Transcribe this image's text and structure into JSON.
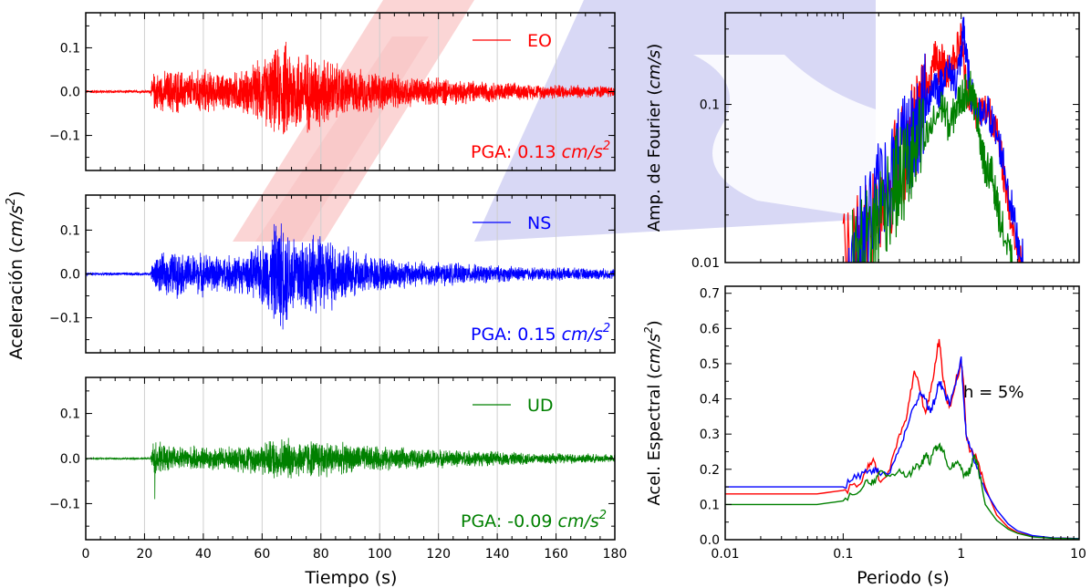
{
  "figure": {
    "left_ylabel": "Aceleración",
    "left_ylabel_unit_base": "cm/s",
    "left_ylabel_unit_exp": "2",
    "left_xlabel": "Tiempo (s)",
    "right_xlabel": "Periodo (s)"
  },
  "colors": {
    "EO": "#ff0000",
    "NS": "#0000ff",
    "UD": "#008000",
    "watermark_red": "#f7b8b8",
    "watermark_blue": "#b8b8ee"
  },
  "chart_data": [
    {
      "type": "line",
      "id": "EO",
      "legend": "EO",
      "pga_prefix": "PGA: ",
      "pga_value": "0.13",
      "pga_unit": "cm/s",
      "pga_unit_exp": "2",
      "xlim": [
        0,
        180
      ],
      "ylim": [
        -0.18,
        0.18
      ],
      "xticks": [
        "0",
        "20",
        "40",
        "60",
        "80",
        "100",
        "120",
        "140",
        "160",
        "180"
      ],
      "yticks": [
        "−0.1",
        "0.0",
        "0.1"
      ],
      "ytick_values": [
        -0.1,
        0.0,
        0.1
      ],
      "pga": 0.13,
      "envelope": [
        [
          0,
          0.004
        ],
        [
          22,
          0.004
        ],
        [
          23,
          0.05
        ],
        [
          26,
          0.05
        ],
        [
          30,
          0.06
        ],
        [
          35,
          0.05
        ],
        [
          40,
          0.06
        ],
        [
          45,
          0.045
        ],
        [
          50,
          0.05
        ],
        [
          55,
          0.06
        ],
        [
          60,
          0.085
        ],
        [
          65,
          0.11
        ],
        [
          68,
          0.13
        ],
        [
          72,
          0.11
        ],
        [
          78,
          0.1
        ],
        [
          82,
          0.085
        ],
        [
          90,
          0.06
        ],
        [
          100,
          0.05
        ],
        [
          110,
          0.04
        ],
        [
          130,
          0.03
        ],
        [
          150,
          0.02
        ],
        [
          180,
          0.015
        ]
      ]
    },
    {
      "type": "line",
      "id": "NS",
      "legend": "NS",
      "pga_prefix": "PGA: ",
      "pga_value": "0.15",
      "pga_unit": "cm/s",
      "pga_unit_exp": "2",
      "xlim": [
        0,
        180
      ],
      "ylim": [
        -0.18,
        0.18
      ],
      "xticks": [
        "0",
        "20",
        "40",
        "60",
        "80",
        "100",
        "120",
        "140",
        "160",
        "180"
      ],
      "yticks": [
        "−0.1",
        "0.0",
        "0.1"
      ],
      "ytick_values": [
        -0.1,
        0.0,
        0.1
      ],
      "pga": 0.15,
      "envelope": [
        [
          0,
          0.004
        ],
        [
          22,
          0.004
        ],
        [
          23,
          0.045
        ],
        [
          26,
          0.05
        ],
        [
          30,
          0.06
        ],
        [
          35,
          0.05
        ],
        [
          40,
          0.055
        ],
        [
          45,
          0.045
        ],
        [
          50,
          0.05
        ],
        [
          55,
          0.05
        ],
        [
          60,
          0.08
        ],
        [
          63,
          0.1
        ],
        [
          65,
          0.15
        ],
        [
          70,
          0.12
        ],
        [
          75,
          0.1
        ],
        [
          80,
          0.1
        ],
        [
          84,
          0.09
        ],
        [
          90,
          0.06
        ],
        [
          100,
          0.045
        ],
        [
          110,
          0.035
        ],
        [
          130,
          0.025
        ],
        [
          150,
          0.018
        ],
        [
          180,
          0.013
        ]
      ]
    },
    {
      "type": "line",
      "id": "UD",
      "legend": "UD",
      "pga_prefix": "PGA: ",
      "pga_value": "-0.09",
      "pga_unit": "cm/s",
      "pga_unit_exp": "2",
      "xlim": [
        0,
        180
      ],
      "ylim": [
        -0.18,
        0.18
      ],
      "xticks": [
        "0",
        "20",
        "40",
        "60",
        "80",
        "100",
        "120",
        "140",
        "160",
        "180"
      ],
      "yticks": [
        "−0.1",
        "0.0",
        "0.1"
      ],
      "ytick_values": [
        -0.1,
        0.0,
        0.1
      ],
      "pga": -0.09,
      "spike": {
        "t": 23.5,
        "value": -0.09
      },
      "envelope": [
        [
          0,
          0.002
        ],
        [
          22,
          0.002
        ],
        [
          23,
          0.05
        ],
        [
          26,
          0.035
        ],
        [
          30,
          0.03
        ],
        [
          40,
          0.03
        ],
        [
          50,
          0.03
        ],
        [
          60,
          0.04
        ],
        [
          65,
          0.055
        ],
        [
          70,
          0.05
        ],
        [
          75,
          0.045
        ],
        [
          80,
          0.05
        ],
        [
          85,
          0.04
        ],
        [
          90,
          0.035
        ],
        [
          100,
          0.03
        ],
        [
          110,
          0.025
        ],
        [
          130,
          0.02
        ],
        [
          150,
          0.015
        ],
        [
          180,
          0.01
        ]
      ]
    },
    {
      "type": "line",
      "id": "fourier",
      "ylabel": "Amp. de Fourier",
      "ylabel_unit": "cm/s",
      "xscale": "log",
      "yscale": "log",
      "xlim": [
        0.01,
        10
      ],
      "ylim": [
        0.01,
        0.38
      ],
      "yticks": [
        "0.01",
        "0.1"
      ],
      "ytick_values": [
        0.01,
        0.1
      ],
      "series": [
        {
          "component": "EO",
          "points": [
            [
              0.1,
              0.01
            ],
            [
              0.13,
              0.013
            ],
            [
              0.16,
              0.018
            ],
            [
              0.2,
              0.025
            ],
            [
              0.25,
              0.032
            ],
            [
              0.3,
              0.045
            ],
            [
              0.35,
              0.055
            ],
            [
              0.4,
              0.07
            ],
            [
              0.45,
              0.09
            ],
            [
              0.5,
              0.12
            ],
            [
              0.55,
              0.15
            ],
            [
              0.6,
              0.2
            ],
            [
              0.65,
              0.17
            ],
            [
              0.7,
              0.19
            ],
            [
              0.75,
              0.15
            ],
            [
              0.8,
              0.18
            ],
            [
              0.9,
              0.21
            ],
            [
              1.0,
              0.26
            ],
            [
              1.1,
              0.13
            ],
            [
              1.2,
              0.11
            ],
            [
              1.35,
              0.09
            ],
            [
              1.5,
              0.09
            ],
            [
              1.7,
              0.095
            ],
            [
              1.9,
              0.08
            ],
            [
              2.2,
              0.045
            ],
            [
              2.6,
              0.02
            ],
            [
              3.0,
              0.012
            ],
            [
              3.3,
              0.01
            ]
          ]
        },
        {
          "component": "NS",
          "points": [
            [
              0.11,
              0.01
            ],
            [
              0.14,
              0.014
            ],
            [
              0.17,
              0.02
            ],
            [
              0.2,
              0.028
            ],
            [
              0.25,
              0.035
            ],
            [
              0.3,
              0.045
            ],
            [
              0.35,
              0.055
            ],
            [
              0.4,
              0.065
            ],
            [
              0.45,
              0.08
            ],
            [
              0.5,
              0.1
            ],
            [
              0.55,
              0.12
            ],
            [
              0.6,
              0.14
            ],
            [
              0.65,
              0.12
            ],
            [
              0.7,
              0.15
            ],
            [
              0.8,
              0.16
            ],
            [
              0.9,
              0.14
            ],
            [
              1.0,
              0.2
            ],
            [
              1.05,
              0.3
            ],
            [
              1.1,
              0.2
            ],
            [
              1.2,
              0.12
            ],
            [
              1.35,
              0.09
            ],
            [
              1.5,
              0.08
            ],
            [
              1.7,
              0.09
            ],
            [
              1.9,
              0.07
            ],
            [
              2.2,
              0.05
            ],
            [
              2.6,
              0.025
            ],
            [
              3.0,
              0.014
            ],
            [
              3.4,
              0.01
            ]
          ]
        },
        {
          "component": "UD",
          "points": [
            [
              0.12,
              0.01
            ],
            [
              0.15,
              0.013
            ],
            [
              0.18,
              0.016
            ],
            [
              0.2,
              0.02
            ],
            [
              0.25,
              0.028
            ],
            [
              0.3,
              0.033
            ],
            [
              0.35,
              0.04
            ],
            [
              0.4,
              0.045
            ],
            [
              0.5,
              0.06
            ],
            [
              0.6,
              0.08
            ],
            [
              0.7,
              0.1
            ],
            [
              0.8,
              0.07
            ],
            [
              0.9,
              0.095
            ],
            [
              1.0,
              0.11
            ],
            [
              1.1,
              0.12
            ],
            [
              1.2,
              0.13
            ],
            [
              1.3,
              0.1
            ],
            [
              1.4,
              0.08
            ],
            [
              1.5,
              0.05
            ],
            [
              1.6,
              0.04
            ],
            [
              1.8,
              0.038
            ],
            [
              1.9,
              0.03
            ],
            [
              2.1,
              0.02
            ],
            [
              2.4,
              0.013
            ],
            [
              2.7,
              0.01
            ]
          ]
        }
      ]
    },
    {
      "type": "line",
      "id": "spectrum",
      "ylabel": "Acel. Espectral",
      "ylabel_unit": "cm/s",
      "ylabel_unit_exp": "2",
      "annotation": "h = 5%",
      "xscale": "log",
      "yscale": "linear",
      "xlim": [
        0.01,
        10
      ],
      "ylim": [
        0.0,
        0.72
      ],
      "xticks": [
        "0.01",
        "0.1",
        "1",
        "10"
      ],
      "xtick_values": [
        0.01,
        0.1,
        1,
        10
      ],
      "yticks": [
        "0.0",
        "0.1",
        "0.2",
        "0.3",
        "0.4",
        "0.5",
        "0.6",
        "0.7"
      ],
      "ytick_values": [
        0,
        0.1,
        0.2,
        0.3,
        0.4,
        0.5,
        0.6,
        0.7
      ],
      "series": [
        {
          "component": "EO",
          "points": [
            [
              0.01,
              0.13
            ],
            [
              0.03,
              0.13
            ],
            [
              0.06,
              0.13
            ],
            [
              0.1,
              0.14
            ],
            [
              0.13,
              0.15
            ],
            [
              0.16,
              0.2
            ],
            [
              0.18,
              0.23
            ],
            [
              0.2,
              0.17
            ],
            [
              0.25,
              0.2
            ],
            [
              0.3,
              0.3
            ],
            [
              0.35,
              0.36
            ],
            [
              0.4,
              0.48
            ],
            [
              0.45,
              0.42
            ],
            [
              0.5,
              0.36
            ],
            [
              0.55,
              0.42
            ],
            [
              0.6,
              0.5
            ],
            [
              0.65,
              0.57
            ],
            [
              0.7,
              0.46
            ],
            [
              0.75,
              0.4
            ],
            [
              0.8,
              0.38
            ],
            [
              0.9,
              0.45
            ],
            [
              1.0,
              0.5
            ],
            [
              1.05,
              0.44
            ],
            [
              1.1,
              0.3
            ],
            [
              1.2,
              0.25
            ],
            [
              1.4,
              0.22
            ],
            [
              1.6,
              0.15
            ],
            [
              2.0,
              0.07
            ],
            [
              2.5,
              0.035
            ],
            [
              3.0,
              0.02
            ],
            [
              4.0,
              0.01
            ],
            [
              6.0,
              0.005
            ],
            [
              10,
              0.003
            ]
          ]
        },
        {
          "component": "NS",
          "points": [
            [
              0.01,
              0.15
            ],
            [
              0.03,
              0.15
            ],
            [
              0.06,
              0.15
            ],
            [
              0.1,
              0.15
            ],
            [
              0.12,
              0.17
            ],
            [
              0.15,
              0.19
            ],
            [
              0.18,
              0.2
            ],
            [
              0.2,
              0.19
            ],
            [
              0.25,
              0.19
            ],
            [
              0.3,
              0.26
            ],
            [
              0.35,
              0.32
            ],
            [
              0.4,
              0.38
            ],
            [
              0.45,
              0.42
            ],
            [
              0.5,
              0.4
            ],
            [
              0.55,
              0.36
            ],
            [
              0.6,
              0.4
            ],
            [
              0.65,
              0.45
            ],
            [
              0.7,
              0.43
            ],
            [
              0.8,
              0.38
            ],
            [
              0.9,
              0.44
            ],
            [
              1.0,
              0.52
            ],
            [
              1.05,
              0.4
            ],
            [
              1.1,
              0.3
            ],
            [
              1.2,
              0.26
            ],
            [
              1.4,
              0.2
            ],
            [
              1.6,
              0.14
            ],
            [
              2.0,
              0.085
            ],
            [
              2.5,
              0.045
            ],
            [
              3.0,
              0.025
            ],
            [
              4.0,
              0.012
            ],
            [
              6.0,
              0.005
            ],
            [
              10,
              0.003
            ]
          ]
        },
        {
          "component": "UD",
          "points": [
            [
              0.01,
              0.1
            ],
            [
              0.03,
              0.1
            ],
            [
              0.06,
              0.1
            ],
            [
              0.1,
              0.11
            ],
            [
              0.13,
              0.13
            ],
            [
              0.16,
              0.17
            ],
            [
              0.18,
              0.16
            ],
            [
              0.2,
              0.19
            ],
            [
              0.25,
              0.18
            ],
            [
              0.3,
              0.2
            ],
            [
              0.35,
              0.18
            ],
            [
              0.4,
              0.2
            ],
            [
              0.45,
              0.21
            ],
            [
              0.5,
              0.24
            ],
            [
              0.55,
              0.22
            ],
            [
              0.6,
              0.26
            ],
            [
              0.65,
              0.27
            ],
            [
              0.7,
              0.25
            ],
            [
              0.8,
              0.2
            ],
            [
              0.9,
              0.22
            ],
            [
              1.0,
              0.2
            ],
            [
              1.1,
              0.18
            ],
            [
              1.2,
              0.2
            ],
            [
              1.3,
              0.24
            ],
            [
              1.4,
              0.2
            ],
            [
              1.6,
              0.1
            ],
            [
              2.0,
              0.055
            ],
            [
              2.5,
              0.03
            ],
            [
              3.0,
              0.018
            ],
            [
              4.0,
              0.008
            ],
            [
              6.0,
              0.004
            ],
            [
              10,
              0.002
            ]
          ]
        }
      ]
    }
  ]
}
